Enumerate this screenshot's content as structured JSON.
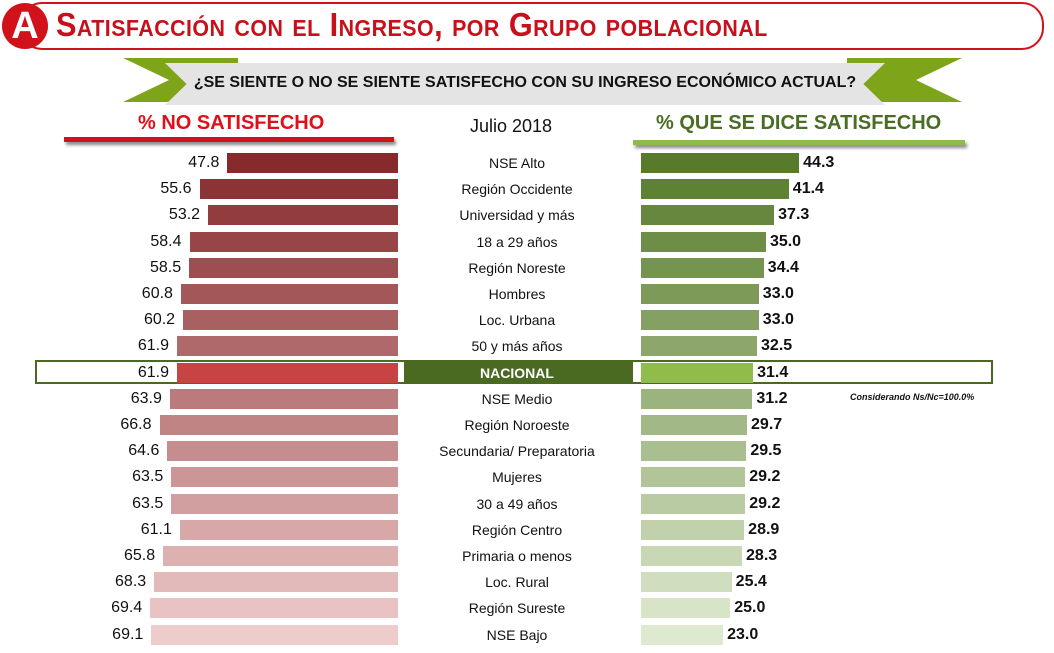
{
  "header": {
    "badge": "A",
    "title": "Satisfacción con el Ingreso, por Grupo poblacional",
    "question": "¿SE SIENTE O NO SE SIENTE SATISFECHO CON SU INGRESO ECONÓMICO ACTUAL?",
    "left_heading": "% NO SATISFECHO",
    "center_heading": "Julio 2018",
    "right_heading": "% QUE SE DICE SATISFECHO",
    "note": "Considerando Ns/Nc=100.0%"
  },
  "colors": {
    "left_dark": "#862a2c",
    "left_light": "#efcccc",
    "right_dark": "#577b2b",
    "right_light": "#deead0",
    "left_national": "#c84444",
    "right_national": "#8fbc4b",
    "national_band": "#4a6a22"
  },
  "chart_data": {
    "type": "bar",
    "title": "Satisfacción con el Ingreso, por Grupo poblacional",
    "categories": [
      "NSE Alto",
      "Región Occidente",
      "Universidad y más",
      "18 a 29 años",
      "Región Noreste",
      "Hombres",
      "Loc. Urbana",
      "50 y más años",
      "NACIONAL",
      "NSE Medio",
      "Región Noroeste",
      "Secundaria/ Preparatoria",
      "Mujeres",
      "30 a 49 años",
      "Región Centro",
      "Primaria o menos",
      "Loc. Rural",
      "Región Sureste",
      "NSE Bajo"
    ],
    "series": [
      {
        "name": "% NO SATISFECHO",
        "values": [
          47.8,
          55.6,
          53.2,
          58.4,
          58.5,
          60.8,
          60.2,
          61.9,
          61.9,
          63.9,
          66.8,
          64.6,
          63.5,
          63.5,
          61.1,
          65.8,
          68.3,
          69.4,
          69.1
        ]
      },
      {
        "name": "% QUE SE DICE SATISFECHO",
        "values": [
          44.3,
          41.4,
          37.3,
          35.0,
          34.4,
          33.0,
          33.0,
          32.5,
          31.4,
          31.2,
          29.7,
          29.5,
          29.2,
          29.2,
          28.9,
          28.3,
          25.4,
          25.0,
          23.0
        ]
      }
    ],
    "highlight": "NACIONAL"
  }
}
